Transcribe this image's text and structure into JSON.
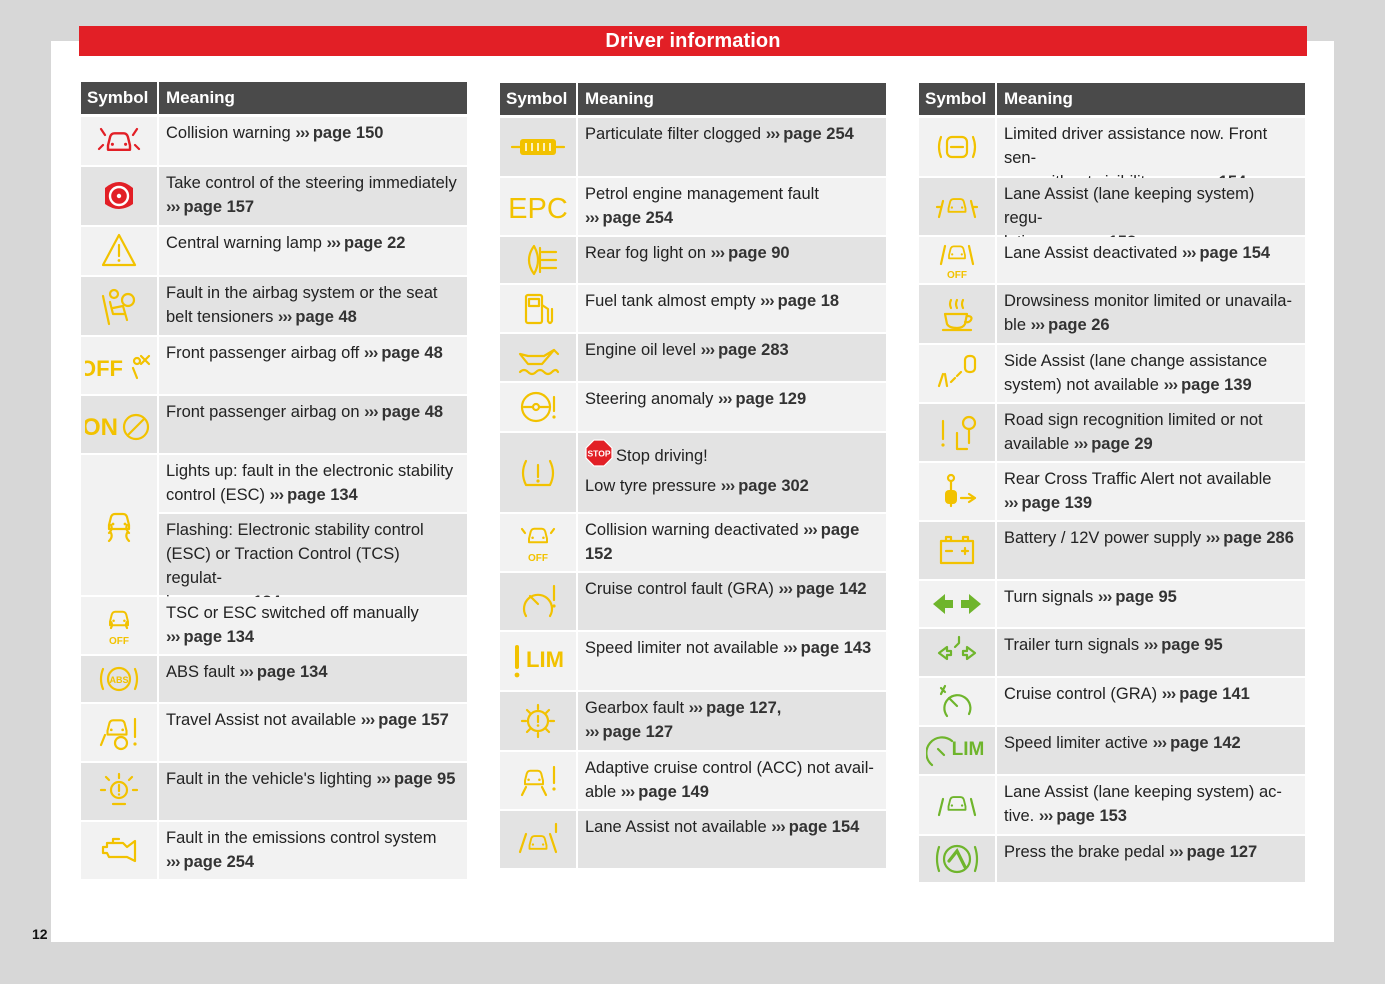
{
  "header": {
    "title": "Driver information"
  },
  "page_number": "12",
  "columns": [
    {
      "symbol_header": "Symbol",
      "meaning_header": "Meaning",
      "rows": [
        {
          "icon": "collision-warning-icon",
          "icon_color": "#e21f26",
          "h": 48,
          "bg": "wht",
          "entries": [
            {
              "lines": [
                "Collision warning"
              ],
              "ref": "page 150"
            }
          ]
        },
        {
          "icon": "take-control-steering-icon",
          "icon_color": "#e21f26",
          "h": 58,
          "bg": "gray",
          "entries": [
            {
              "lines": [
                "Take control of the steering immediately"
              ],
              "ref": "page 157"
            }
          ]
        },
        {
          "icon": "central-warning-lamp-icon",
          "icon_color": "#f2c200",
          "h": 48,
          "bg": "wht",
          "entries": [
            {
              "lines": [
                "Central warning lamp"
              ],
              "ref": "page 22"
            }
          ]
        },
        {
          "icon": "airbag-fault-icon",
          "icon_color": "#f2c200",
          "h": 58,
          "bg": "gray",
          "entries": [
            {
              "lines": [
                "Fault in the airbag system or the seat",
                "belt tensioners"
              ],
              "ref": "page 48"
            }
          ]
        },
        {
          "icon": "passenger-airbag-off-icon",
          "icon_color": "#f2c200",
          "h": 57,
          "bg": "wht",
          "entries": [
            {
              "lines": [
                "Front passenger airbag off"
              ],
              "ref": "page 48"
            }
          ]
        },
        {
          "icon": "passenger-airbag-on-icon",
          "icon_color": "#f2c200",
          "h": 57,
          "bg": "gray",
          "entries": [
            {
              "lines": [
                "Front passenger airbag on"
              ],
              "ref": "page 48"
            }
          ]
        },
        {
          "icon": "esc-icon",
          "icon_color": "#f2c200",
          "h": 140,
          "bg": "wht",
          "entries": [
            {
              "lines": [
                "Lights up: fault in the electronic stability",
                "control (ESC)"
              ],
              "ref": "page 134",
              "h": 57,
              "bg": "wht"
            },
            {
              "lines": [
                "Flashing: Electronic stability control",
                "(ESC) or Traction Control (TCS) regulat-",
                "ing"
              ],
              "ref": "page 134",
              "h": 81,
              "bg": "gray"
            }
          ]
        },
        {
          "icon": "tsc-esc-off-icon",
          "icon_color": "#f2c200",
          "h": 57,
          "bg": "wht",
          "entries": [
            {
              "lines": [
                "TSC or ESC switched off manually"
              ],
              "ref": "page 134"
            }
          ]
        },
        {
          "icon": "abs-icon",
          "icon_color": "#f2c200",
          "h": 46,
          "bg": "gray",
          "entries": [
            {
              "lines": [
                "ABS fault"
              ],
              "ref": "page 134"
            }
          ]
        },
        {
          "icon": "travel-assist-icon",
          "icon_color": "#f2c200",
          "h": 57,
          "bg": "wht",
          "entries": [
            {
              "lines": [
                "Travel Assist not available"
              ],
              "ref": "page 157"
            }
          ]
        },
        {
          "icon": "lighting-fault-icon",
          "icon_color": "#f2c200",
          "h": 57,
          "bg": "gray",
          "entries": [
            {
              "lines": [
                "Fault in the vehicle's lighting"
              ],
              "ref": "page 95"
            }
          ]
        },
        {
          "icon": "emissions-engine-icon",
          "icon_color": "#f2c200",
          "h": 57,
          "bg": "wht",
          "entries": [
            {
              "lines": [
                "Fault in the emissions control system"
              ],
              "ref": "page 254"
            }
          ]
        }
      ]
    },
    {
      "symbol_header": "Symbol",
      "meaning_header": "Meaning",
      "rows": [
        {
          "icon": "particulate-filter-icon",
          "icon_color": "#f2c200",
          "h": 58,
          "bg": "gray",
          "entries": [
            {
              "lines": [
                "Particulate filter clogged"
              ],
              "ref": "page 254"
            }
          ]
        },
        {
          "icon": "epc-icon",
          "icon_color": "#f2c200",
          "label": "EPC",
          "h": 57,
          "bg": "wht",
          "entries": [
            {
              "lines": [
                "Petrol engine management fault"
              ],
              "ref": "page 254"
            }
          ]
        },
        {
          "icon": "rear-fog-light-icon",
          "icon_color": "#f2c200",
          "h": 46,
          "bg": "gray",
          "entries": [
            {
              "lines": [
                "Rear fog light on"
              ],
              "ref": "page 90"
            }
          ]
        },
        {
          "icon": "fuel-tank-icon",
          "icon_color": "#f2c200",
          "h": 47,
          "bg": "wht",
          "entries": [
            {
              "lines": [
                "Fuel tank almost empty"
              ],
              "ref": "page 18"
            }
          ]
        },
        {
          "icon": "engine-oil-icon",
          "icon_color": "#f2c200",
          "h": 47,
          "bg": "gray",
          "entries": [
            {
              "lines": [
                "Engine oil level"
              ],
              "ref": "page 283"
            }
          ]
        },
        {
          "icon": "steering-anomaly-icon",
          "icon_color": "#f2c200",
          "h": 48,
          "bg": "wht",
          "entries": [
            {
              "lines": [
                "Steering anomaly"
              ],
              "ref": "page 129"
            }
          ]
        },
        {
          "icon": "tyre-pressure-icon",
          "icon_color": "#f2c200",
          "h": 79,
          "bg": "gray",
          "entries": [
            {
              "stop": true,
              "stop_label": "STOP",
              "lines": [
                "Stop driving!",
                "Low tyre pressure"
              ],
              "ref": "page 302"
            }
          ]
        },
        {
          "icon": "collision-warning-off-icon",
          "icon_color": "#f2c200",
          "h": 57,
          "bg": "wht",
          "entries": [
            {
              "lines": [
                "Collision warning deactivated"
              ],
              "ref": "page 152"
            }
          ]
        },
        {
          "icon": "cruise-control-fault-icon",
          "icon_color": "#f2c200",
          "h": 57,
          "bg": "gray",
          "entries": [
            {
              "lines": [
                "Cruise control fault (GRA)"
              ],
              "ref": "page 142"
            }
          ]
        },
        {
          "icon": "speed-limiter-na-icon",
          "icon_color": "#f2c200",
          "label": "LIM",
          "h": 58,
          "bg": "wht",
          "entries": [
            {
              "lines": [
                "Speed limiter not available"
              ],
              "ref": "page 143"
            }
          ]
        },
        {
          "icon": "gearbox-fault-icon",
          "icon_color": "#f2c200",
          "h": 58,
          "bg": "gray",
          "entries": [
            {
              "lines": [
                "Gearbox fault"
              ],
              "ref": "page 127,",
              "extra_ref": "page 127"
            }
          ]
        },
        {
          "icon": "acc-fault-icon",
          "icon_color": "#f2c200",
          "h": 57,
          "bg": "wht",
          "entries": [
            {
              "lines": [
                "Adaptive cruise control (ACC) not avail-",
                "able"
              ],
              "ref": "page 149"
            }
          ]
        },
        {
          "icon": "lane-assist-na-icon",
          "icon_color": "#f2c200",
          "h": 57,
          "bg": "gray",
          "entries": [
            {
              "lines": [
                "Lane Assist not available"
              ],
              "ref": "page 154"
            }
          ]
        }
      ]
    },
    {
      "symbol_header": "Symbol",
      "meaning_header": "Meaning",
      "rows": [
        {
          "icon": "driver-assist-limited-icon",
          "icon_color": "#f2c200",
          "h": 58,
          "bg": "wht",
          "entries": [
            {
              "lines": [
                "Limited driver assistance now. Front sen-",
                "sors without visibility"
              ],
              "ref": "page 154"
            }
          ]
        },
        {
          "icon": "lane-assist-regulating-icon",
          "icon_color": "#f2c200",
          "h": 57,
          "bg": "gray",
          "entries": [
            {
              "lines": [
                "Lane Assist (lane keeping system) regu-",
                "lating"
              ],
              "ref": "page 153"
            }
          ]
        },
        {
          "icon": "lane-assist-off-icon",
          "icon_color": "#f2c200",
          "h": 46,
          "bg": "wht",
          "entries": [
            {
              "lines": [
                "Lane Assist deactivated"
              ],
              "ref": "page 154"
            }
          ]
        },
        {
          "icon": "drowsiness-monitor-icon",
          "icon_color": "#f2c200",
          "h": 58,
          "bg": "gray",
          "entries": [
            {
              "lines": [
                "Drowsiness monitor limited or unavaila-",
                "ble"
              ],
              "ref": "page 26"
            }
          ]
        },
        {
          "icon": "side-assist-icon",
          "icon_color": "#f2c200",
          "h": 57,
          "bg": "wht",
          "entries": [
            {
              "lines": [
                "Side Assist (lane change assistance",
                "system) not available"
              ],
              "ref": "page 139"
            }
          ]
        },
        {
          "icon": "road-sign-recognition-icon",
          "icon_color": "#f2c200",
          "h": 57,
          "bg": "gray",
          "entries": [
            {
              "lines": [
                "Road sign recognition limited or not",
                "available"
              ],
              "ref": "page 29"
            }
          ]
        },
        {
          "icon": "rear-cross-traffic-icon",
          "icon_color": "#f2c200",
          "h": 57,
          "bg": "wht",
          "entries": [
            {
              "lines": [
                "Rear Cross Traffic Alert not available"
              ],
              "ref": "page 139"
            }
          ]
        },
        {
          "icon": "battery-icon",
          "icon_color": "#f2c200",
          "h": 57,
          "bg": "gray",
          "entries": [
            {
              "lines": [
                "Battery / 12V power supply"
              ],
              "ref": "page 286"
            }
          ]
        },
        {
          "icon": "turn-signals-icon",
          "icon_color": "#6fb52c",
          "h": 46,
          "bg": "wht",
          "entries": [
            {
              "lines": [
                "Turn signals"
              ],
              "ref": "page 95"
            }
          ]
        },
        {
          "icon": "trailer-turn-signals-icon",
          "icon_color": "#6fb52c",
          "h": 47,
          "bg": "gray",
          "entries": [
            {
              "lines": [
                "Trailer turn signals"
              ],
              "ref": "page 95"
            }
          ]
        },
        {
          "icon": "cruise-control-icon",
          "icon_color": "#6fb52c",
          "h": 47,
          "bg": "wht",
          "entries": [
            {
              "lines": [
                "Cruise control (GRA)"
              ],
              "ref": "page 141"
            }
          ]
        },
        {
          "icon": "speed-limiter-active-icon",
          "icon_color": "#6fb52c",
          "label": "LIM",
          "h": 47,
          "bg": "gray",
          "entries": [
            {
              "lines": [
                "Speed limiter active"
              ],
              "ref": "page 142"
            }
          ]
        },
        {
          "icon": "lane-assist-active-icon",
          "icon_color": "#6fb52c",
          "h": 58,
          "bg": "wht",
          "entries": [
            {
              "lines": [
                "Lane Assist (lane keeping system) ac-",
                "tive."
              ],
              "ref": "page 153"
            }
          ]
        },
        {
          "icon": "brake-pedal-icon",
          "icon_color": "#6fb52c",
          "h": 46,
          "bg": "gray",
          "entries": [
            {
              "lines": [
                "Press the brake pedal"
              ],
              "ref": "page 127"
            }
          ]
        }
      ]
    }
  ],
  "colors": {
    "banner": "#e21f26",
    "header_bg": "#4a4a4a",
    "row_gray": "#e3e3e3",
    "row_white": "#f2f2f2",
    "warning_red": "#e21f26",
    "warning_yellow": "#f2c200",
    "indicator_green": "#6fb52c"
  }
}
